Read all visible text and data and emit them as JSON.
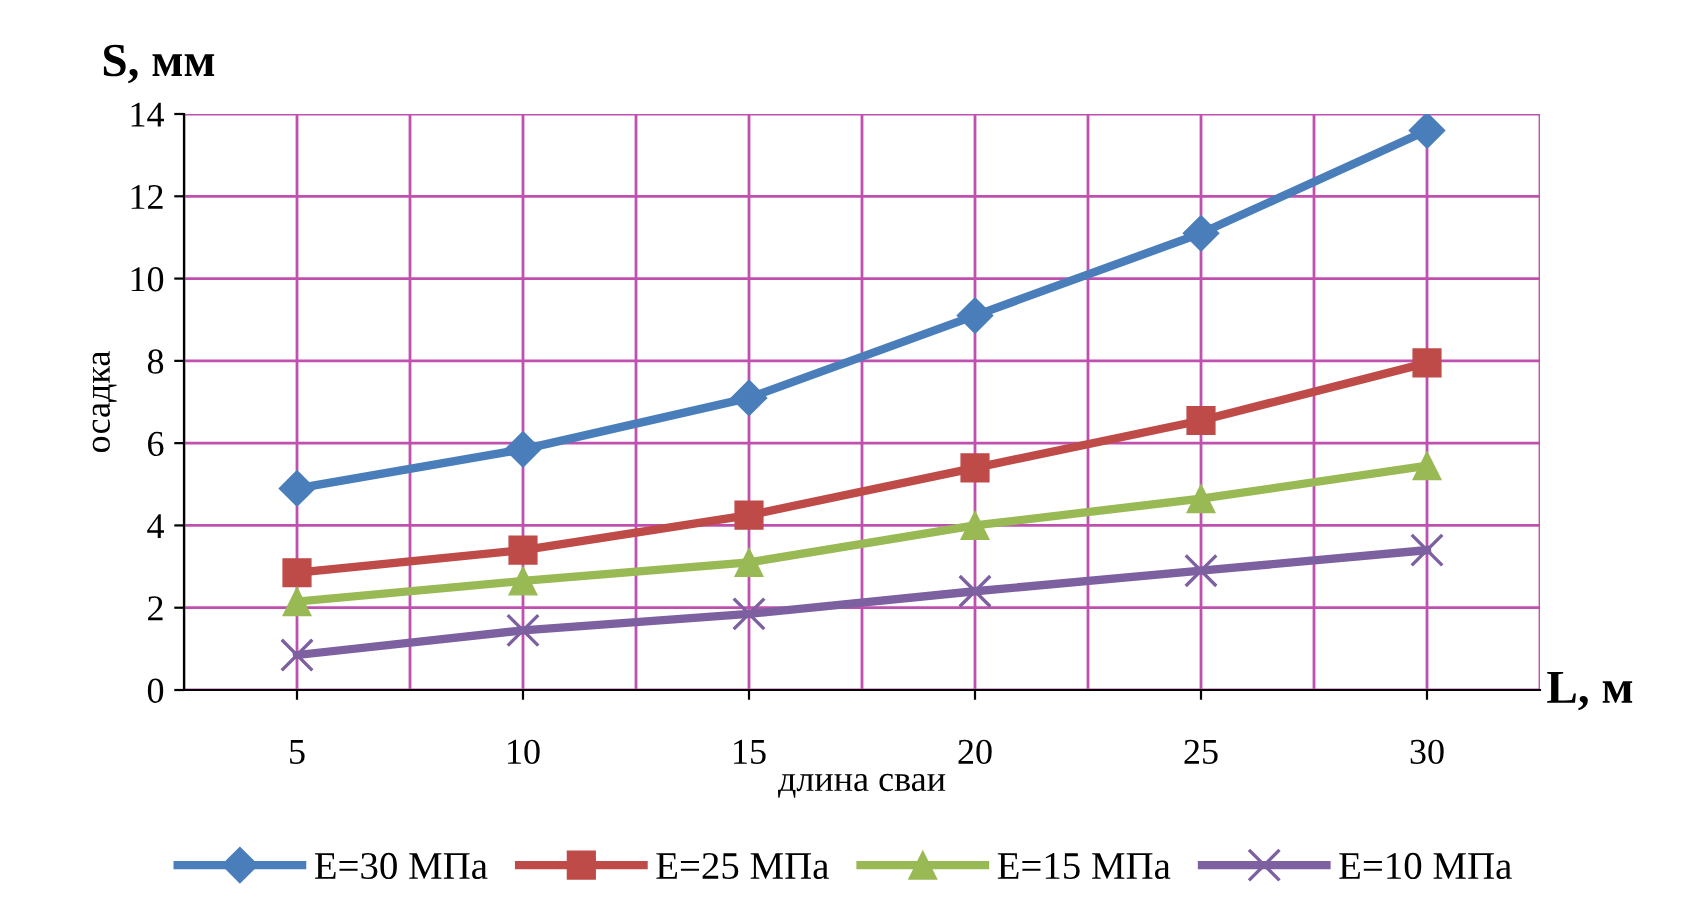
{
  "chart_data": {
    "type": "line",
    "xlabel": "длина сваи",
    "ylabel": "осадка",
    "annotations": [
      "S, мм",
      "L, м"
    ],
    "categories": [
      "5",
      "10",
      "15",
      "20",
      "25",
      "30"
    ],
    "series": [
      {
        "name": "E=30 МПа",
        "color": "#4a7ebb",
        "marker": "diamond",
        "values": [
          4.9,
          5.85,
          7.1,
          9.1,
          11.1,
          13.6
        ]
      },
      {
        "name": "E=25 МПа",
        "color": "#be4b48",
        "marker": "square",
        "values": [
          2.85,
          3.4,
          4.25,
          5.4,
          6.55,
          7.95
        ]
      },
      {
        "name": "E=15 МПа",
        "color": "#98b954",
        "marker": "triangle",
        "values": [
          2.15,
          2.65,
          3.1,
          4.0,
          4.65,
          5.45
        ]
      },
      {
        "name": "E=10 МПа",
        "color": "#7d60a0",
        "marker": "cross",
        "values": [
          0.85,
          1.45,
          1.85,
          2.4,
          2.9,
          3.4
        ]
      }
    ],
    "ylim": [
      0,
      14
    ],
    "yticks": [
      0,
      2,
      4,
      6,
      8,
      10,
      12,
      14
    ],
    "grid": true,
    "legend": "bottom",
    "line_style": "solid"
  }
}
